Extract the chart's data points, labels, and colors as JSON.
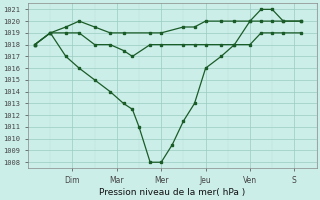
{
  "xlabel": "Pression niveau de la mer( hPa )",
  "ylim": [
    1007.5,
    1021.5
  ],
  "yticks": [
    1008,
    1009,
    1010,
    1011,
    1012,
    1013,
    1014,
    1015,
    1016,
    1017,
    1018,
    1019,
    1020,
    1021
  ],
  "day_labels": [
    "Dim",
    "Mar",
    "Mer",
    "Jeu",
    "Ven",
    "S"
  ],
  "day_positions": [
    2,
    4,
    6,
    8,
    10,
    12
  ],
  "bg_color": "#cceee8",
  "grid_color_minor": "#b8ddd6",
  "grid_color_major": "#99ccc2",
  "line_color": "#1a5c28",
  "xlim": [
    0,
    13
  ],
  "series_low": {
    "x": [
      0.3,
      1.0,
      1.7,
      2.3,
      3.0,
      3.7,
      4.3,
      4.7,
      5.0,
      5.5,
      6.0,
      6.5,
      7.0,
      7.5,
      8.0,
      8.7,
      9.3,
      10.0,
      10.5,
      11.0,
      11.5,
      12.3
    ],
    "y": [
      1018,
      1019,
      1017,
      1016,
      1015,
      1014,
      1013,
      1012.5,
      1011,
      1008,
      1008,
      1009.5,
      1011.5,
      1013,
      1016,
      1017,
      1018,
      1020,
      1021,
      1021,
      1020,
      1020
    ]
  },
  "series_mid": {
    "x": [
      0.3,
      1.0,
      1.7,
      2.3,
      3.0,
      3.7,
      4.3,
      4.7,
      5.5,
      6.0,
      7.0,
      7.5,
      8.0,
      8.7,
      9.3,
      10.0,
      10.5,
      11.0,
      11.5,
      12.3
    ],
    "y": [
      1018,
      1019,
      1019,
      1019,
      1018,
      1018,
      1017.5,
      1017,
      1018,
      1018,
      1018,
      1018,
      1018,
      1018,
      1018,
      1018,
      1019,
      1019,
      1019,
      1019
    ]
  },
  "series_high": {
    "x": [
      0.3,
      1.0,
      1.7,
      2.3,
      3.0,
      3.7,
      4.3,
      5.5,
      6.0,
      7.0,
      7.5,
      8.0,
      8.7,
      9.3,
      10.0,
      10.5,
      11.0,
      11.5,
      12.3
    ],
    "y": [
      1018,
      1019,
      1019.5,
      1020,
      1019.5,
      1019,
      1019,
      1019,
      1019,
      1019.5,
      1019.5,
      1020,
      1020,
      1020,
      1020,
      1020,
      1020,
      1020,
      1020
    ]
  }
}
